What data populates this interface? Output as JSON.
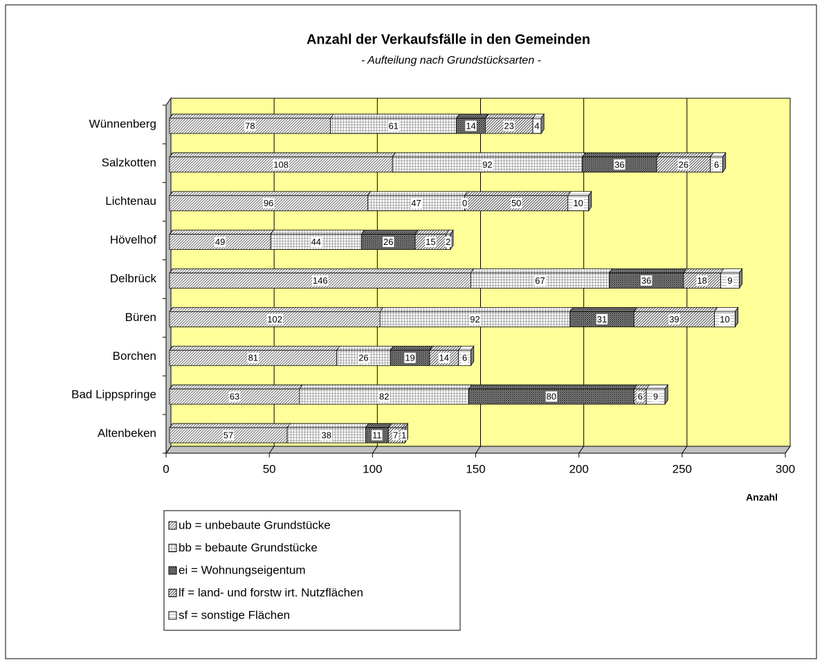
{
  "chart_data": {
    "type": "stacked_barh",
    "title": "Anzahl der Verkaufsfälle in den Gemeinden",
    "subtitle": "- Aufteilung nach Grundstücksarten -",
    "x_label": "Anzahl",
    "categories": [
      "Altenbeken",
      "Bad Lippspringe",
      "Borchen",
      "Büren",
      "Delbrück",
      "Hövelhof",
      "Lichtenau",
      "Salzkotten",
      "Wünnenberg"
    ],
    "series": [
      {
        "name": "ub = unbebaute Grundstücke",
        "color": "#808080",
        "pattern": "diagonal",
        "values": [
          57,
          63,
          81,
          102,
          146,
          49,
          96,
          108,
          78
        ]
      },
      {
        "name": "bb = bebaute Grundstücke",
        "color": "#808080",
        "pattern": "grid",
        "values": [
          38,
          82,
          26,
          92,
          67,
          44,
          47,
          92,
          61
        ]
      },
      {
        "name": "ei = Wohnungseigentum",
        "color": "#404040",
        "pattern": "cross",
        "values": [
          11,
          80,
          19,
          31,
          36,
          26,
          0,
          36,
          14
        ]
      },
      {
        "name": "lf = land- und forstw irt. Nutzflächen",
        "color": "#606060",
        "pattern": "diagonal",
        "values": [
          7,
          6,
          14,
          39,
          18,
          15,
          50,
          26,
          23
        ]
      },
      {
        "name": "sf = sonstige Flächen",
        "color": "#808080",
        "pattern": "horizontal",
        "values": [
          1,
          9,
          6,
          10,
          9,
          2,
          10,
          6,
          4
        ]
      }
    ],
    "xlim": [
      0,
      300
    ],
    "xticks": [
      0,
      50,
      100,
      150,
      200,
      250,
      300
    ],
    "grid": true,
    "background": "#ffff99"
  }
}
